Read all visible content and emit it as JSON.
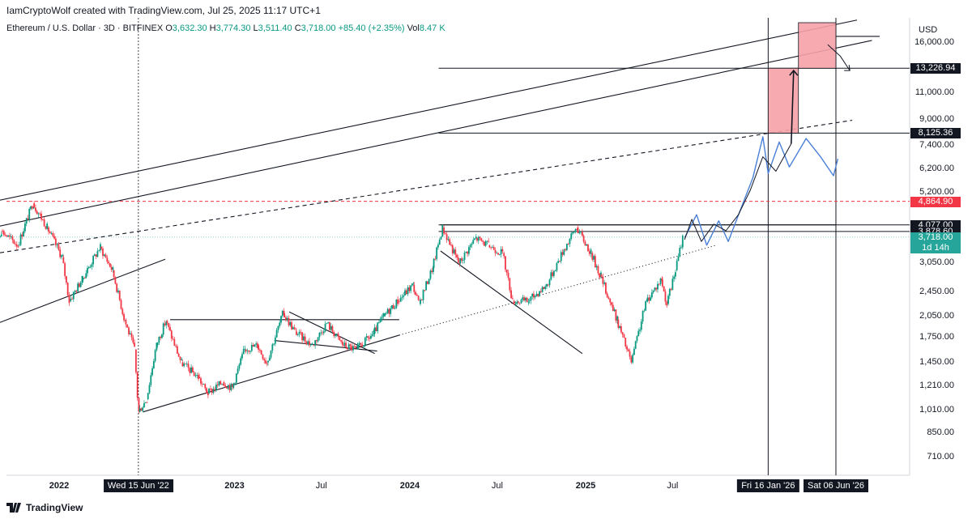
{
  "header": {
    "credit": "IamCryptoWolf created with TradingView.com, Jul 25, 2025 11:17 UTC+1",
    "symbol": "Ethereum / U.S. Dollar · 3D · BITFINEX",
    "o_label": "O",
    "o": "3,632.30",
    "h_label": "H",
    "h": "3,774.30",
    "l_label": "L",
    "l": "3,511.40",
    "c_label": "C",
    "c": "3,718.00",
    "change": "+85.40 (+2.35%)",
    "vol_label": "Vol",
    "vol": "8.47 K"
  },
  "footer": {
    "brand": "TradingView"
  },
  "colors": {
    "up": "#089981",
    "down": "#f23645",
    "zone": "#f7a1a8",
    "blue": "#4a7fd6",
    "dark": "#131722",
    "last": "#26a69a"
  },
  "chart_data": {
    "type": "candlestick",
    "title": "",
    "currency": "USD",
    "y_scale": "log",
    "ylim": [
      620,
      19000
    ],
    "y_ticks": [
      16000,
      11000,
      9000,
      7400,
      6200,
      5200,
      3050,
      2450,
      2050,
      1750,
      1450,
      1210,
      1010,
      850,
      710
    ],
    "y_tick_labels": [
      "16,000.00",
      "11,000.00",
      "9,000.00",
      "7,400.00",
      "6,200.00",
      "5,200.00",
      "3,050.00",
      "2,450.00",
      "2,050.00",
      "1,750.00",
      "1,450.00",
      "1,210.00",
      "1,010.00",
      "850.00",
      "710.00"
    ],
    "price_markers": [
      {
        "value": 13226.94,
        "label": "13,226.94",
        "color": "#131722"
      },
      {
        "value": 8125.36,
        "label": "8,125.36",
        "color": "#131722"
      },
      {
        "value": 4864.9,
        "label": "4,864.90",
        "color": "#f23645"
      },
      {
        "value": 4077.0,
        "label": "4,077.00",
        "color": "#131722"
      },
      {
        "value": 3878.6,
        "label": "3,878.60",
        "color": "#131722"
      },
      {
        "value": 3718.0,
        "label": "3,718.00",
        "sub": "1d 14h",
        "color": "#26a69a"
      }
    ],
    "x_ticks": [
      {
        "date": "2022-01-01",
        "label": "2022",
        "bold": true
      },
      {
        "date": "2023-01-01",
        "label": "2023",
        "bold": true
      },
      {
        "date": "2023-07-01",
        "label": "Jul",
        "bold": false
      },
      {
        "date": "2024-01-01",
        "label": "2024",
        "bold": true
      },
      {
        "date": "2024-07-01",
        "label": "Jul",
        "bold": false
      },
      {
        "date": "2025-01-01",
        "label": "2025",
        "bold": true
      },
      {
        "date": "2025-07-01",
        "label": "Jul",
        "bold": false
      }
    ],
    "date_markers": [
      {
        "date": "2022-06-15",
        "label": "Wed 15 Jun '22"
      },
      {
        "date": "2026-01-16",
        "label": "Fri 16 Jan '26"
      },
      {
        "date": "2026-06-06",
        "label": "Sat 06 Jun '26"
      }
    ],
    "price_path": [
      [
        "2021-08-01",
        3000
      ],
      [
        "2021-09-05",
        3900
      ],
      [
        "2021-10-10",
        3500
      ],
      [
        "2021-11-10",
        4800
      ],
      [
        "2021-12-10",
        4000
      ],
      [
        "2022-01-10",
        3200
      ],
      [
        "2022-01-25",
        2300
      ],
      [
        "2022-02-20",
        2700
      ],
      [
        "2022-03-30",
        3450
      ],
      [
        "2022-04-25",
        2900
      ],
      [
        "2022-05-20",
        2000
      ],
      [
        "2022-06-10",
        1600
      ],
      [
        "2022-06-18",
        1000
      ],
      [
        "2022-07-05",
        1100
      ],
      [
        "2022-07-25",
        1650
      ],
      [
        "2022-08-14",
        1980
      ],
      [
        "2022-09-15",
        1450
      ],
      [
        "2022-10-20",
        1300
      ],
      [
        "2022-11-09",
        1150
      ],
      [
        "2022-12-10",
        1250
      ],
      [
        "2022-12-30",
        1200
      ],
      [
        "2023-01-25",
        1600
      ],
      [
        "2023-02-20",
        1650
      ],
      [
        "2023-03-12",
        1450
      ],
      [
        "2023-04-15",
        2100
      ],
      [
        "2023-05-10",
        1830
      ],
      [
        "2023-06-15",
        1650
      ],
      [
        "2023-07-15",
        1950
      ],
      [
        "2023-08-18",
        1650
      ],
      [
        "2023-09-15",
        1600
      ],
      [
        "2023-10-20",
        1800
      ],
      [
        "2023-11-10",
        2050
      ],
      [
        "2023-12-10",
        2300
      ],
      [
        "2024-01-10",
        2600
      ],
      [
        "2024-01-23",
        2250
      ],
      [
        "2024-02-20",
        2950
      ],
      [
        "2024-03-12",
        4000
      ],
      [
        "2024-04-15",
        3050
      ],
      [
        "2024-05-20",
        3700
      ],
      [
        "2024-06-15",
        3500
      ],
      [
        "2024-07-15",
        3300
      ],
      [
        "2024-08-05",
        2300
      ],
      [
        "2024-09-06",
        2300
      ],
      [
        "2024-10-15",
        2600
      ],
      [
        "2024-11-20",
        3400
      ],
      [
        "2024-12-16",
        4000
      ],
      [
        "2025-01-15",
        3300
      ],
      [
        "2025-02-03",
        2800
      ],
      [
        "2025-03-10",
        2000
      ],
      [
        "2025-04-09",
        1450
      ],
      [
        "2025-05-10",
        2300
      ],
      [
        "2025-06-10",
        2700
      ],
      [
        "2025-06-22",
        2250
      ],
      [
        "2025-07-10",
        2900
      ],
      [
        "2025-07-25",
        3718
      ]
    ],
    "projections": {
      "blue_path": [
        [
          "2025-07-26",
          3700
        ],
        [
          "2025-08-20",
          4400
        ],
        [
          "2025-09-10",
          3500
        ],
        [
          "2025-10-05",
          4200
        ],
        [
          "2025-10-25",
          3600
        ],
        [
          "2025-11-20",
          4600
        ],
        [
          "2025-12-15",
          5800
        ],
        [
          "2026-01-05",
          7900
        ],
        [
          "2026-01-16",
          6000
        ],
        [
          "2026-02-08",
          7600
        ],
        [
          "2026-03-01",
          6300
        ],
        [
          "2026-04-05",
          7800
        ],
        [
          "2026-05-05",
          6800
        ],
        [
          "2026-06-01",
          5900
        ],
        [
          "2026-06-10",
          6700
        ]
      ],
      "gray_path": [
        [
          "2025-07-26",
          3650
        ],
        [
          "2025-08-10",
          4250
        ],
        [
          "2025-08-30",
          3600
        ],
        [
          "2025-09-25",
          4100
        ],
        [
          "2025-10-20",
          3900
        ],
        [
          "2025-11-15",
          4400
        ],
        [
          "2025-12-10",
          5300
        ],
        [
          "2026-01-05",
          6800
        ],
        [
          "2026-02-01",
          6100
        ],
        [
          "2026-03-05",
          7500
        ]
      ],
      "arrow_1": [
        [
          "2026-03-05",
          7500
        ],
        [
          "2026-03-10",
          13000
        ]
      ],
      "arrow_2_curve": [
        [
          "2026-05-20",
          15800
        ],
        [
          "2026-06-15",
          14500
        ],
        [
          "2026-07-05",
          13000
        ]
      ]
    },
    "zones": [
      {
        "from": "2026-01-16",
        "to": "2026-03-20",
        "low": 8125.36,
        "high": 13226.94
      },
      {
        "from": "2026-03-20",
        "to": "2026-06-06",
        "low": 13226.94,
        "high": 19000
      }
    ]
  }
}
